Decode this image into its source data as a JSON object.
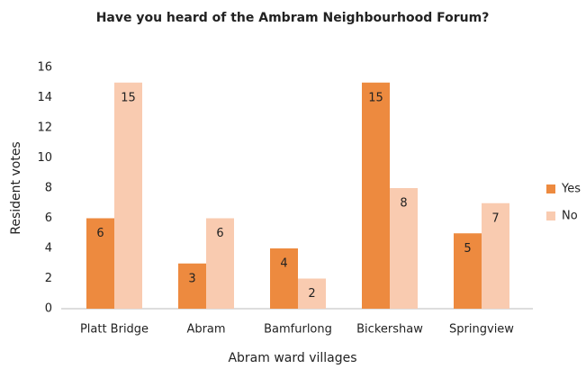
{
  "chart_data": {
    "type": "bar",
    "title": "Have you heard of the Ambram Neighbourhood Forum?",
    "x_label": "Abram ward villages",
    "y_label": "Resident votes",
    "categories": [
      "Platt Bridge",
      "Abram",
      "Bamfurlong",
      "Bickershaw",
      "Springview"
    ],
    "series": [
      {
        "name": "Yes",
        "color": "#ed8a3f",
        "values": [
          6,
          3,
          4,
          15,
          5
        ]
      },
      {
        "name": "No",
        "color": "#f9cbb0",
        "values": [
          15,
          6,
          2,
          8,
          7
        ]
      }
    ],
    "ylim": [
      0,
      16
    ],
    "yticks": [
      0,
      2,
      4,
      6,
      8,
      10,
      12,
      14,
      16
    ],
    "grid": false,
    "legend": "right"
  }
}
